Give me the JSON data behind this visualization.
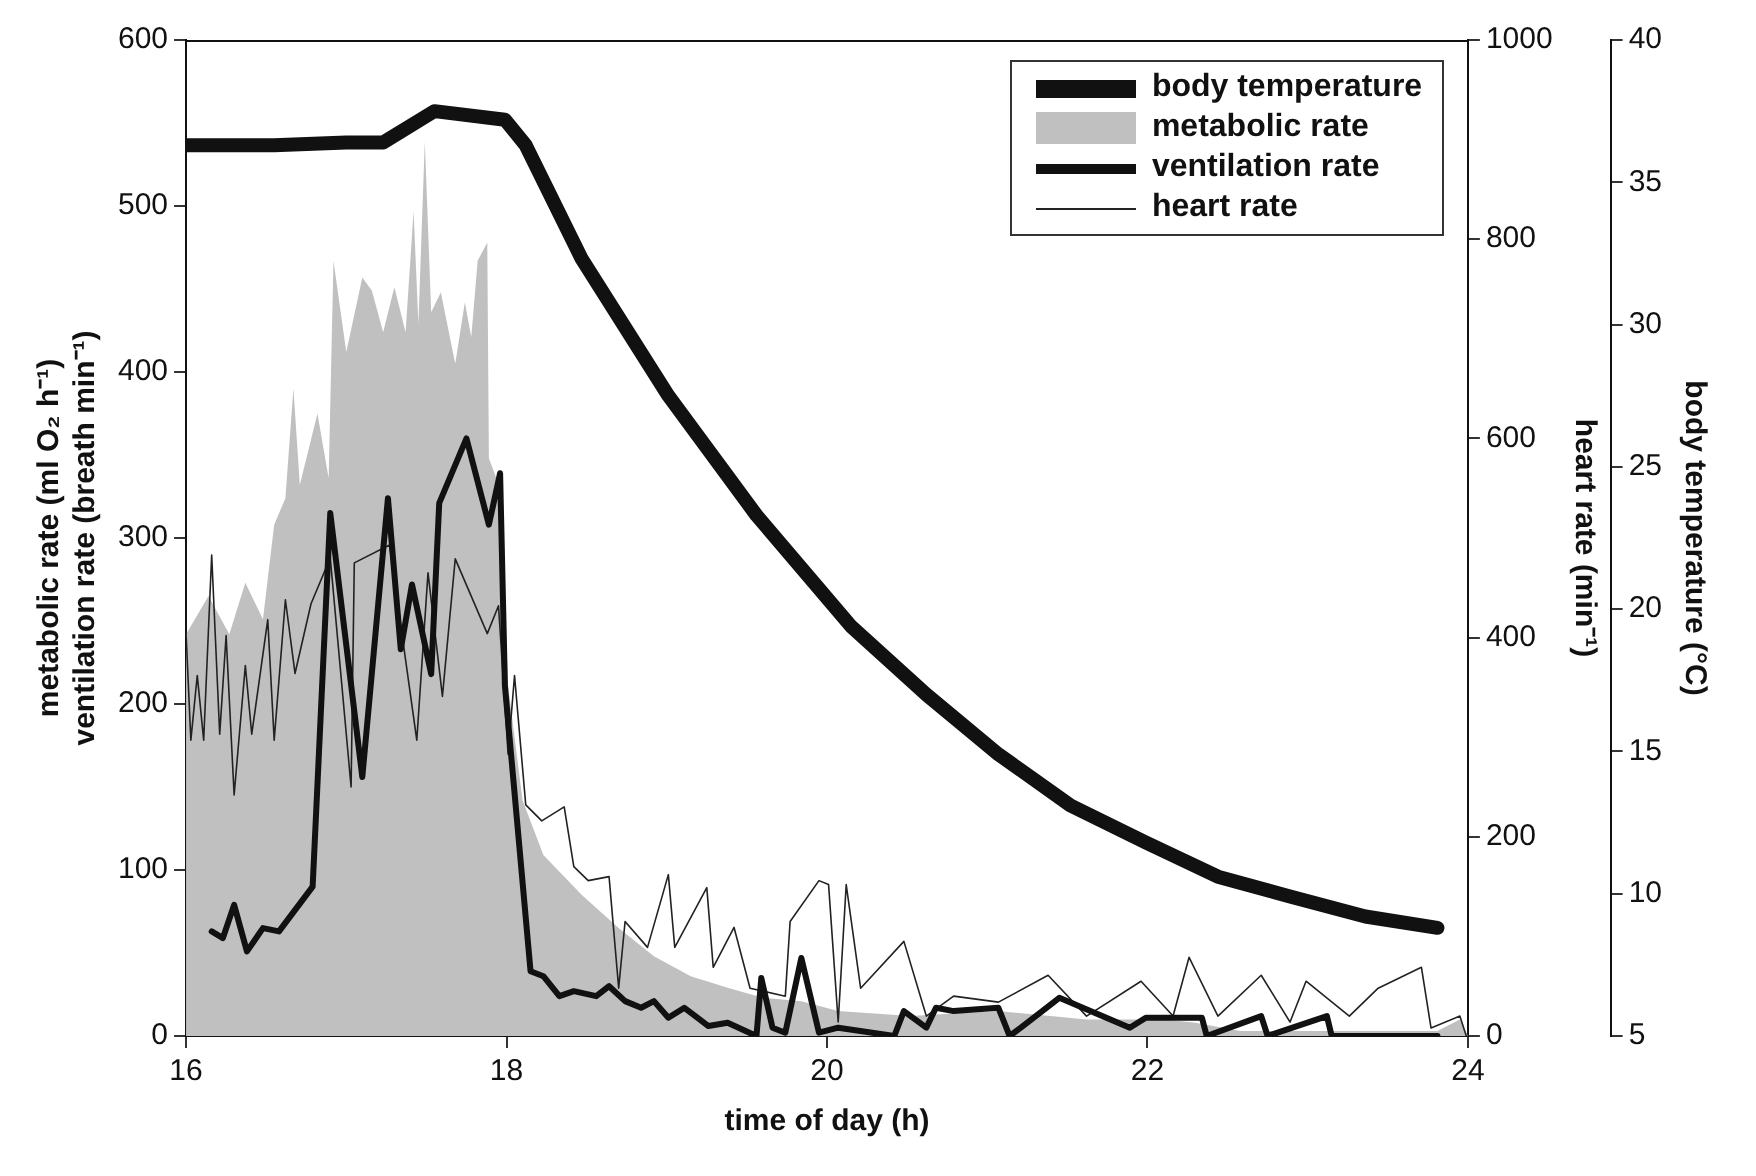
{
  "chart_data": {
    "type": "line",
    "xlabel": "time of day (h)",
    "ylabel": "metabolic rate (ml O₂ h⁻¹)\nventilation rate (breath min⁻¹)",
    "y2label": "heart rate (min⁻¹)",
    "y3label": "body temperature (°C)",
    "xlim": [
      16,
      24
    ],
    "xticks": [
      16,
      18,
      20,
      22,
      24
    ],
    "ylim": [
      0,
      600
    ],
    "yticks": [
      0,
      100,
      200,
      300,
      400,
      500,
      600
    ],
    "y2lim": [
      0,
      1000
    ],
    "y2ticks": [
      0,
      200,
      400,
      600,
      800,
      1000
    ],
    "y3lim": [
      5,
      40
    ],
    "y3ticks": [
      5,
      10,
      15,
      20,
      25,
      30,
      35,
      40
    ],
    "legend": "top right",
    "series": [
      {
        "name": "body temperature",
        "axis": "y3",
        "color": "#111111",
        "x": [
          16.0,
          16.55,
          17.0,
          17.23,
          17.55,
          17.99,
          18.12,
          18.47,
          19.01,
          19.56,
          20.15,
          20.62,
          21.07,
          21.52,
          21.99,
          22.44,
          22.89,
          23.36,
          23.81
        ],
        "values": [
          36.3,
          36.3,
          36.4,
          36.4,
          37.5,
          37.2,
          36.3,
          32.3,
          27.5,
          23.3,
          19.4,
          17.0,
          14.9,
          13.1,
          11.8,
          10.6,
          9.9,
          9.2,
          8.8
        ]
      },
      {
        "name": "metabolic rate",
        "type": "area",
        "axis": "y",
        "color": "#c0c0c0",
        "x": [
          16.0,
          16.14,
          16.27,
          16.37,
          16.48,
          16.55,
          16.62,
          16.67,
          16.71,
          16.82,
          16.89,
          16.92,
          17.0,
          17.1,
          17.16,
          17.23,
          17.3,
          17.37,
          17.42,
          17.45,
          17.49,
          17.53,
          17.59,
          17.68,
          17.74,
          17.78,
          17.82,
          17.88,
          17.89,
          17.96,
          18.01,
          18.1,
          18.23,
          18.47,
          18.7,
          18.92,
          19.15,
          19.38,
          19.6,
          19.84,
          20.07,
          20.52,
          21.07,
          21.62,
          22.11,
          22.3,
          22.58,
          23.12,
          23.81,
          23.95,
          24.0
        ],
        "values": [
          242,
          265,
          242,
          273,
          251,
          308,
          324,
          390,
          332,
          375,
          336,
          467,
          412,
          457,
          449,
          424,
          451,
          424,
          497,
          429,
          539,
          436,
          448,
          405,
          442,
          421,
          467,
          478,
          348,
          330,
          211,
          142,
          109,
          85,
          65,
          48,
          36,
          29,
          23,
          21,
          15,
          12,
          15,
          10,
          10,
          8,
          3,
          3,
          3,
          10,
          0
        ]
      },
      {
        "name": "ventilation rate",
        "axis": "y",
        "color": "#111111",
        "x": [
          16.16,
          16.23,
          16.3,
          16.38,
          16.48,
          16.58,
          16.79,
          16.9,
          17.1,
          17.26,
          17.34,
          17.41,
          17.53,
          17.58,
          17.75,
          17.89,
          17.96,
          17.99,
          18.15,
          18.23,
          18.33,
          18.42,
          18.56,
          18.64,
          18.74,
          18.84,
          18.92,
          19.01,
          19.11,
          19.26,
          19.38,
          19.56,
          19.59,
          19.66,
          19.74,
          19.84,
          19.95,
          20.07,
          20.42,
          20.48,
          20.62,
          20.68,
          20.79,
          21.07,
          21.14,
          21.21,
          21.45,
          21.89,
          21.99,
          22.34,
          22.37,
          22.71,
          22.75,
          23.12,
          23.15,
          23.81
        ],
        "values": [
          63,
          59,
          79,
          51,
          65,
          63,
          90,
          315,
          156,
          324,
          233,
          272,
          218,
          321,
          360,
          308,
          339,
          211,
          39,
          36,
          24,
          27,
          24,
          30,
          21,
          17,
          21,
          11,
          17,
          6,
          8,
          0,
          35,
          5,
          2,
          47,
          2,
          5,
          0,
          15,
          5,
          17,
          15,
          17,
          0,
          5,
          23,
          5,
          11,
          11,
          0,
          12,
          0,
          12,
          0,
          0
        ]
      },
      {
        "name": "heart rate",
        "axis": "y2",
        "color": "#222222",
        "x": [
          16.0,
          16.03,
          16.07,
          16.11,
          16.16,
          16.21,
          16.25,
          16.3,
          16.37,
          16.41,
          16.51,
          16.55,
          16.62,
          16.68,
          16.78,
          16.9,
          17.03,
          17.05,
          17.27,
          17.44,
          17.51,
          17.6,
          17.68,
          17.88,
          17.95,
          18.01,
          18.05,
          18.12,
          18.22,
          18.36,
          18.42,
          18.51,
          18.64,
          18.7,
          18.74,
          18.88,
          19.01,
          19.05,
          19.25,
          19.29,
          19.42,
          19.52,
          19.74,
          19.77,
          19.95,
          20.01,
          20.07,
          20.12,
          20.21,
          20.48,
          20.62,
          20.79,
          21.07,
          21.38,
          21.62,
          21.96,
          22.16,
          22.26,
          22.44,
          22.71,
          22.89,
          22.99,
          23.26,
          23.44,
          23.71,
          23.77,
          23.95,
          23.99
        ],
        "values": [
          404,
          297,
          362,
          297,
          483,
          303,
          402,
          242,
          372,
          303,
          418,
          297,
          438,
          364,
          434,
          480,
          250,
          475,
          493,
          297,
          465,
          341,
          479,
          404,
          432,
          283,
          362,
          232,
          216,
          230,
          170,
          156,
          160,
          48,
          115,
          89,
          162,
          89,
          149,
          69,
          109,
          48,
          40,
          115,
          156,
          152,
          14,
          152,
          48,
          95,
          20,
          40,
          34,
          61,
          20,
          55,
          20,
          79,
          20,
          61,
          14,
          55,
          20,
          48,
          69,
          8,
          20,
          0
        ]
      }
    ]
  }
}
